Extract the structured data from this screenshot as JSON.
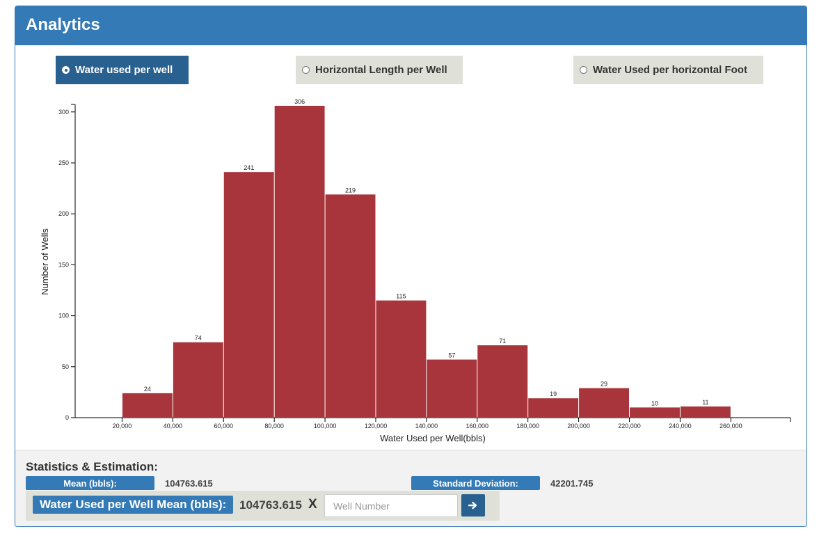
{
  "panel": {
    "title": "Analytics"
  },
  "options": [
    {
      "label": "Water used per well",
      "selected": true
    },
    {
      "label": "Horizontal Length per Well",
      "selected": false
    },
    {
      "label": "Water Used per horizontal Foot",
      "selected": false
    }
  ],
  "chart_data": {
    "type": "bar",
    "xlabel": "Water Used per Well(bbls)",
    "ylabel": "Number of Wells",
    "bins": [
      {
        "x0": 20000,
        "x1": 40000,
        "count": 24
      },
      {
        "x0": 40000,
        "x1": 60000,
        "count": 74
      },
      {
        "x0": 60000,
        "x1": 80000,
        "count": 241
      },
      {
        "x0": 80000,
        "x1": 100000,
        "count": 306
      },
      {
        "x0": 100000,
        "x1": 120000,
        "count": 219
      },
      {
        "x0": 120000,
        "x1": 140000,
        "count": 115
      },
      {
        "x0": 140000,
        "x1": 160000,
        "count": 57
      },
      {
        "x0": 160000,
        "x1": 180000,
        "count": 71
      },
      {
        "x0": 180000,
        "x1": 200000,
        "count": 19
      },
      {
        "x0": 200000,
        "x1": 220000,
        "count": 29
      },
      {
        "x0": 220000,
        "x1": 240000,
        "count": 10
      },
      {
        "x0": 240000,
        "x1": 260000,
        "count": 11
      }
    ],
    "xticks": [
      20000,
      40000,
      60000,
      80000,
      100000,
      120000,
      140000,
      160000,
      180000,
      200000,
      220000,
      240000,
      260000
    ],
    "xtick_labels": [
      "20,000",
      "40,000",
      "60,000",
      "80,000",
      "100,000",
      "120,000",
      "140,000",
      "160,000",
      "180,000",
      "200,000",
      "220,000",
      "240,000",
      "260,000"
    ],
    "yticks": [
      0,
      50,
      100,
      150,
      200,
      250,
      300
    ],
    "xlim": [
      1500,
      283500
    ],
    "ylim": [
      0,
      306
    ],
    "bar_color": "#a8353b",
    "grid": false
  },
  "stats": {
    "title": "Statistics & Estimation:",
    "mean_label": "Mean (bbls):",
    "mean_value": "104763.615",
    "sd_label": "Standard Deviation:",
    "sd_value": "42201.745"
  },
  "estimate": {
    "label": "Water Used per Well Mean (bbls):",
    "value": "104763.615",
    "multiplier": "X",
    "input_placeholder": "Well Number",
    "go_icon": "arrow-right-icon"
  },
  "colors": {
    "header": "#337ab7",
    "active_option": "#286090",
    "inactive_option": "#dfe1d9",
    "bar": "#a8353b"
  }
}
